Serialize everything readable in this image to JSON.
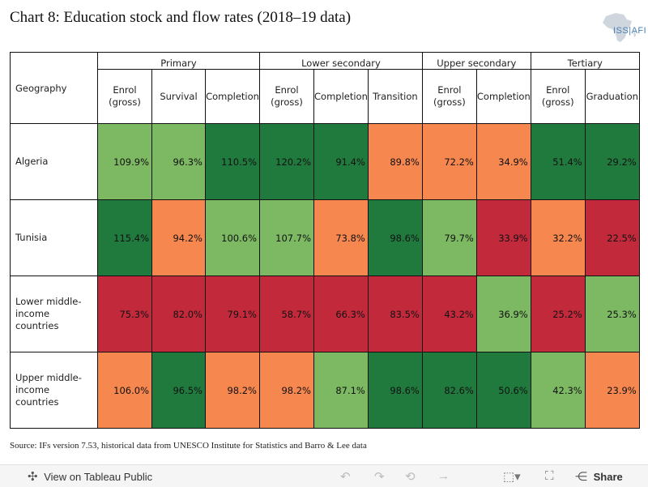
{
  "header": {
    "title": "Chart 8: Education stock and flow rates (2018–19 data)",
    "logo_text": "ISS|AFI"
  },
  "colors": {
    "dark_green": "#217a3d",
    "light_green": "#7db963",
    "orange": "#f6874f",
    "red": "#c22a3c"
  },
  "chart_data": {
    "type": "table",
    "title": "Chart 8: Education stock and flow rates (2018–19 data)",
    "row_header_label": "Geography",
    "groups": [
      {
        "name": "Primary",
        "span": 3
      },
      {
        "name": "Lower secondary",
        "span": 3
      },
      {
        "name": "Upper secondary",
        "span": 2
      },
      {
        "name": "Tertiary",
        "span": 2
      }
    ],
    "columns": [
      "Enrol (gross)",
      "Survival",
      "Completion",
      "Enrol (gross)",
      "Completion",
      "Transition",
      "Enrol (gross)",
      "Completion",
      "Enrol (gross)",
      "Graduation"
    ],
    "rows": [
      {
        "geography": "Algeria",
        "values": [
          "109.9%",
          "96.3%",
          "110.5%",
          "120.2%",
          "91.4%",
          "89.8%",
          "72.2%",
          "34.9%",
          "51.4%",
          "29.2%"
        ],
        "colors": [
          "light_green",
          "light_green",
          "dark_green",
          "dark_green",
          "dark_green",
          "orange",
          "orange",
          "orange",
          "dark_green",
          "dark_green"
        ]
      },
      {
        "geography": "Tunisia",
        "values": [
          "115.4%",
          "94.2%",
          "100.6%",
          "107.7%",
          "73.8%",
          "98.6%",
          "79.7%",
          "33.9%",
          "32.2%",
          "22.5%"
        ],
        "colors": [
          "dark_green",
          "orange",
          "light_green",
          "light_green",
          "orange",
          "dark_green",
          "light_green",
          "red",
          "orange",
          "red"
        ]
      },
      {
        "geography": "Lower middle-income countries",
        "values": [
          "75.3%",
          "82.0%",
          "79.1%",
          "58.7%",
          "66.3%",
          "83.5%",
          "43.2%",
          "36.9%",
          "25.2%",
          "25.3%"
        ],
        "colors": [
          "red",
          "red",
          "red",
          "red",
          "red",
          "red",
          "red",
          "light_green",
          "red",
          "light_green"
        ]
      },
      {
        "geography": "Upper middle-income countries",
        "values": [
          "106.0%",
          "96.5%",
          "98.2%",
          "98.2%",
          "87.1%",
          "98.6%",
          "82.6%",
          "50.6%",
          "42.3%",
          "23.9%"
        ],
        "colors": [
          "orange",
          "dark_green",
          "orange",
          "orange",
          "light_green",
          "dark_green",
          "dark_green",
          "dark_green",
          "light_green",
          "orange"
        ]
      }
    ]
  },
  "source": "Source: IFs version 7.53, historical data from UNESCO Institute for Statistics and Barro & Lee data",
  "toolbar": {
    "view_label": "View on Tableau Public",
    "share_label": "Share",
    "icons": [
      "tableau-logo-icon",
      "undo-icon",
      "redo-icon",
      "revert-icon",
      "forward-icon",
      "download-icon",
      "fullscreen-icon",
      "share-icon"
    ]
  }
}
